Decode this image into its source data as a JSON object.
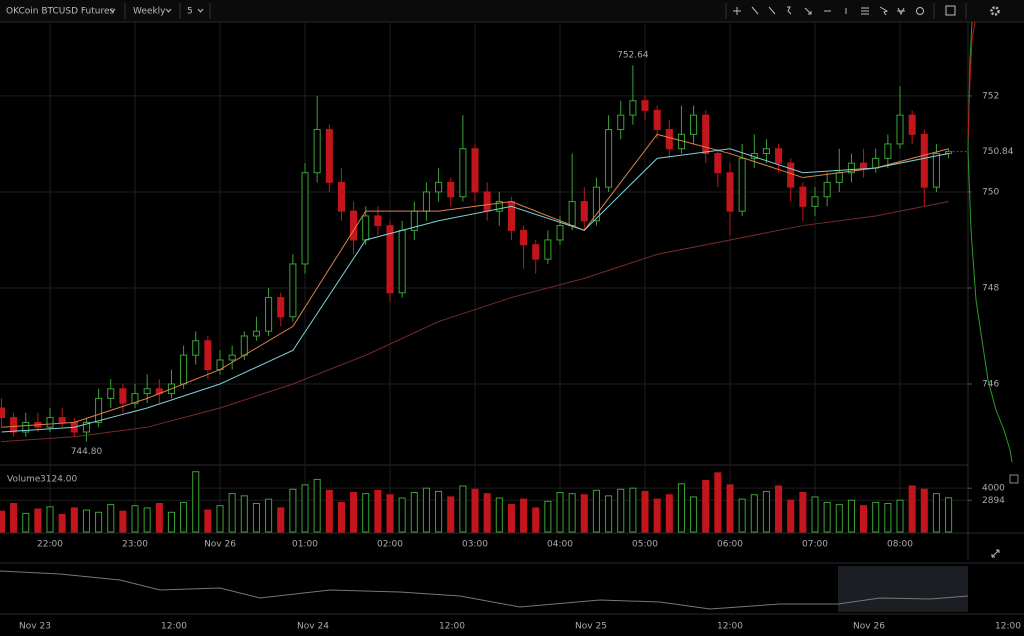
{
  "toolbar": {
    "symbol": "OKCoin BTCUSD Futures",
    "interval": "Weekly",
    "resolution": "5"
  },
  "chart_data": {
    "type": "candlestick",
    "candles": [
      [
        745.5,
        745.7,
        745.1,
        745.3
      ],
      [
        745.3,
        745.4,
        744.9,
        745.0
      ],
      [
        745.0,
        745.4,
        744.9,
        745.2
      ],
      [
        745.2,
        745.4,
        745.0,
        745.1
      ],
      [
        745.1,
        745.5,
        745.0,
        745.3
      ],
      [
        745.3,
        745.5,
        745.1,
        745.2
      ],
      [
        745.2,
        745.3,
        744.9,
        745.0
      ],
      [
        745.0,
        745.3,
        744.8,
        745.2
      ],
      [
        745.2,
        745.9,
        745.1,
        745.7
      ],
      [
        745.7,
        746.1,
        745.5,
        745.9
      ],
      [
        745.9,
        746.0,
        745.4,
        745.6
      ],
      [
        745.6,
        746.0,
        745.5,
        745.8
      ],
      [
        745.8,
        746.2,
        745.6,
        745.9
      ],
      [
        745.9,
        746.1,
        745.6,
        745.8
      ],
      [
        745.8,
        746.3,
        745.7,
        746.0
      ],
      [
        746.0,
        746.8,
        745.9,
        746.6
      ],
      [
        746.6,
        747.1,
        746.4,
        746.9
      ],
      [
        746.9,
        747.0,
        746.1,
        746.3
      ],
      [
        746.3,
        746.7,
        746.2,
        746.5
      ],
      [
        746.5,
        746.8,
        746.3,
        746.6
      ],
      [
        746.6,
        747.1,
        746.5,
        747.0
      ],
      [
        747.0,
        747.4,
        746.9,
        747.1
      ],
      [
        747.1,
        748.0,
        747.0,
        747.8
      ],
      [
        747.8,
        747.9,
        747.2,
        747.4
      ],
      [
        747.4,
        748.7,
        747.3,
        748.5
      ],
      [
        748.5,
        750.6,
        748.3,
        750.4
      ],
      [
        750.4,
        752.0,
        750.2,
        751.3
      ],
      [
        751.3,
        751.4,
        750.0,
        750.2
      ],
      [
        750.2,
        750.5,
        749.4,
        749.6
      ],
      [
        749.6,
        749.8,
        748.7,
        749.0
      ],
      [
        749.0,
        749.7,
        748.9,
        749.5
      ],
      [
        749.5,
        749.7,
        749.1,
        749.3
      ],
      [
        749.3,
        749.4,
        747.7,
        747.9
      ],
      [
        747.9,
        749.4,
        747.8,
        749.2
      ],
      [
        749.2,
        749.8,
        749.0,
        749.6
      ],
      [
        749.6,
        750.2,
        749.4,
        750.0
      ],
      [
        750.0,
        750.5,
        749.8,
        750.2
      ],
      [
        750.2,
        750.3,
        749.7,
        749.9
      ],
      [
        749.9,
        751.6,
        749.8,
        750.9
      ],
      [
        750.9,
        751.0,
        749.8,
        750.0
      ],
      [
        750.0,
        750.2,
        749.4,
        749.6
      ],
      [
        749.6,
        750.0,
        749.3,
        749.8
      ],
      [
        749.8,
        749.9,
        749.0,
        749.2
      ],
      [
        749.2,
        749.3,
        748.4,
        748.9
      ],
      [
        748.9,
        749.0,
        748.3,
        748.6
      ],
      [
        748.6,
        749.2,
        748.5,
        749.0
      ],
      [
        749.0,
        749.5,
        748.9,
        749.3
      ],
      [
        749.3,
        750.8,
        749.2,
        749.8
      ],
      [
        749.8,
        750.1,
        749.2,
        749.4
      ],
      [
        749.4,
        750.3,
        749.3,
        750.1
      ],
      [
        750.1,
        751.6,
        750.0,
        751.3
      ],
      [
        751.3,
        751.9,
        751.1,
        751.6
      ],
      [
        751.6,
        752.64,
        751.4,
        751.9
      ],
      [
        751.9,
        752.0,
        751.5,
        751.7
      ],
      [
        751.7,
        751.8,
        751.1,
        751.3
      ],
      [
        751.3,
        751.5,
        750.7,
        750.9
      ],
      [
        750.9,
        751.8,
        750.8,
        751.2
      ],
      [
        751.2,
        751.8,
        751.0,
        751.6
      ],
      [
        751.6,
        751.7,
        750.6,
        750.8
      ],
      [
        750.8,
        750.9,
        750.1,
        750.4
      ],
      [
        750.4,
        750.6,
        749.1,
        749.6
      ],
      [
        749.6,
        751.0,
        749.5,
        750.7
      ],
      [
        750.7,
        751.2,
        750.5,
        750.8
      ],
      [
        750.8,
        751.1,
        750.6,
        750.9
      ],
      [
        750.9,
        751.0,
        750.4,
        750.6
      ],
      [
        750.6,
        750.7,
        749.8,
        750.1
      ],
      [
        750.1,
        750.2,
        749.4,
        749.7
      ],
      [
        749.7,
        750.1,
        749.5,
        749.9
      ],
      [
        749.9,
        750.4,
        749.7,
        750.2
      ],
      [
        750.2,
        750.9,
        750.0,
        750.4
      ],
      [
        750.4,
        750.8,
        750.2,
        750.6
      ],
      [
        750.6,
        750.9,
        750.3,
        750.5
      ],
      [
        750.5,
        750.9,
        750.4,
        750.7
      ],
      [
        750.7,
        751.2,
        750.5,
        751.0
      ],
      [
        751.0,
        752.2,
        750.9,
        751.6
      ],
      [
        751.6,
        751.7,
        751.0,
        751.2
      ],
      [
        751.2,
        751.3,
        749.7,
        750.1
      ],
      [
        750.1,
        751.0,
        750.0,
        750.8
      ],
      [
        750.8,
        750.9,
        750.7,
        750.84
      ]
    ],
    "colors": {
      "up": "#3aa336",
      "down": "#c3161c"
    },
    "xlim": [
      -0.12,
      79.6
    ],
    "xticks": [
      {
        "value": 4,
        "label": "22:00"
      },
      {
        "value": 11,
        "label": "23:00"
      },
      {
        "value": 18,
        "label": "Nov 26"
      },
      {
        "value": 25,
        "label": "01:00"
      },
      {
        "value": 32,
        "label": "02:00"
      },
      {
        "value": 39,
        "label": "03:00"
      },
      {
        "value": 46,
        "label": "04:00"
      },
      {
        "value": 53,
        "label": "05:00"
      },
      {
        "value": 60,
        "label": "06:00"
      },
      {
        "value": 67,
        "label": "07:00"
      },
      {
        "value": 74,
        "label": "08:00"
      }
    ],
    "ylim": [
      744.375,
      753.54
    ],
    "yticks": [
      746,
      748,
      750,
      752
    ],
    "grid": true,
    "last_price": 750.84,
    "annotations": [
      752.64,
      {
        "value": 744.8,
        "label": "744.80"
      }
    ],
    "ma_x": [
      0,
      6,
      12,
      18,
      24,
      30,
      36,
      42,
      48,
      54,
      60,
      66,
      72,
      78
    ],
    "ma": [
      {
        "color": "#d9824a",
        "values": [
          745.1,
          745.2,
          745.7,
          746.3,
          747.2,
          749.6,
          749.6,
          749.8,
          749.2,
          751.2,
          750.8,
          750.3,
          750.5,
          750.9
        ]
      },
      {
        "color": "#7fd0d6",
        "values": [
          745.0,
          745.1,
          745.5,
          746.0,
          746.7,
          749.0,
          749.4,
          749.7,
          749.2,
          750.7,
          750.9,
          750.4,
          750.5,
          750.8
        ]
      },
      {
        "color": "#7a2a2a",
        "values": [
          744.8,
          744.9,
          745.1,
          745.5,
          746.0,
          746.6,
          747.3,
          747.8,
          748.2,
          748.7,
          749.0,
          749.3,
          749.5,
          749.8
        ]
      }
    ],
    "volume": {
      "title": "Volume",
      "last": {
        "value": 3124,
        "label": "3124.00"
      },
      "values": [
        1900,
        2600,
        1700,
        2100,
        2300,
        1600,
        2200,
        2000,
        1800,
        2500,
        1900,
        2400,
        2200,
        2600,
        1800,
        2700,
        5500,
        2000,
        2400,
        3500,
        3300,
        2600,
        3000,
        2200,
        3900,
        4300,
        4800,
        3800,
        2700,
        3600,
        3500,
        3800,
        3400,
        3100,
        3600,
        4000,
        3700,
        3200,
        4200,
        3900,
        3500,
        3100,
        2500,
        3000,
        2200,
        2800,
        3600,
        3500,
        3400,
        3800,
        3300,
        3900,
        4000,
        3700,
        3000,
        3400,
        4400,
        3200,
        4700,
        5400,
        4300,
        3000,
        3400,
        3700,
        4200,
        2900,
        3600,
        3200,
        2700,
        2500,
        2900,
        2400,
        2700,
        2600,
        2900,
        4200,
        3900,
        3500,
        3124
      ],
      "ylim": [
        0,
        5840
      ],
      "yticks": [
        4000,
        2894
      ]
    }
  },
  "navigator": {
    "labels": [
      "Nov 23",
      "12:00",
      "Nov 24",
      "12:00",
      "Nov 25",
      "12:00",
      "Nov 26",
      "12:00"
    ]
  }
}
